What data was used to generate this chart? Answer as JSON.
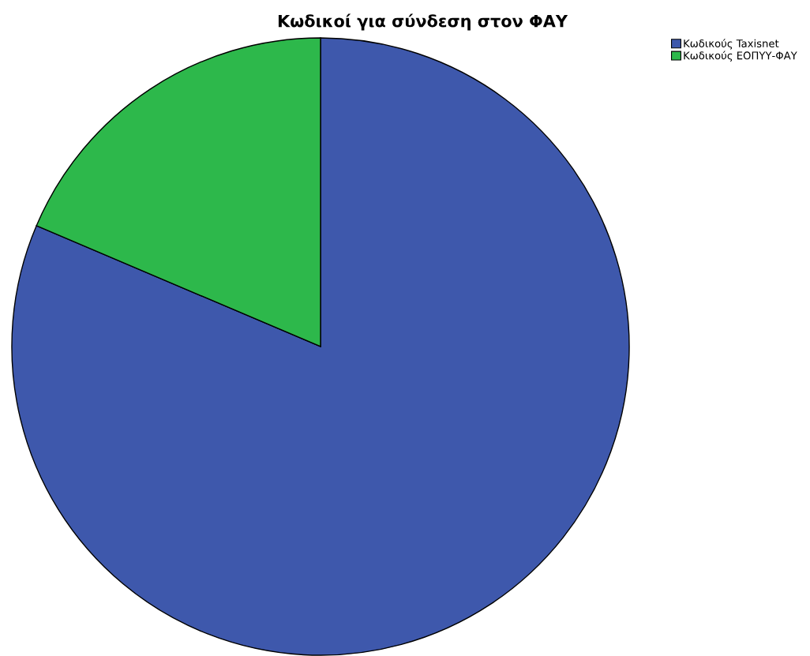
{
  "chart_data": {
    "type": "pie",
    "title": "Κωδικοί για σύνδεση στον ΦΑΥ",
    "categories": [
      "Κωδικούς Taxisnet",
      "Κωδικούς ΕΟΠΥΥ-ΦΑΥ"
    ],
    "values": [
      81.4,
      18.6
    ],
    "colors": [
      "#3e58ac",
      "#2db84b"
    ],
    "legend": "top right"
  }
}
